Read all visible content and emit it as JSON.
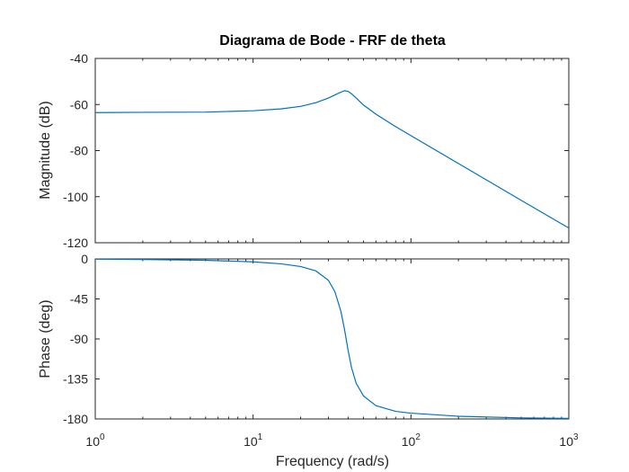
{
  "chart_data": {
    "type": "line",
    "title": "Diagrama de Bode - FRF de theta",
    "xlabel": "Frequency  (rad/s)",
    "xscale": "log",
    "xlim": [
      1,
      1000
    ],
    "xticks": [
      {
        "base": "10",
        "exp": "0"
      },
      {
        "base": "10",
        "exp": "1"
      },
      {
        "base": "10",
        "exp": "2"
      },
      {
        "base": "10",
        "exp": "3"
      }
    ],
    "grid": false,
    "color": "#0072BD",
    "plots": [
      {
        "name": "magnitude",
        "ylabel": "Magnitude (dB)",
        "ylim": [
          -120,
          -40
        ],
        "yticks": [
          "-40",
          "-60",
          "-80",
          "-100",
          "-120"
        ],
        "tick_values": [
          -40,
          -60,
          -80,
          -100,
          -120
        ],
        "x": [
          1,
          2,
          5,
          10,
          15,
          20,
          25,
          30,
          35,
          38,
          40,
          42,
          45,
          50,
          60,
          80,
          100,
          200,
          500,
          1000
        ],
        "y": [
          -63.5,
          -63.4,
          -63.3,
          -62.7,
          -61.9,
          -60.8,
          -59.2,
          -57.2,
          -55.0,
          -54.0,
          -54.3,
          -55.3,
          -57.2,
          -60.2,
          -64.2,
          -69.6,
          -73.5,
          -85.6,
          -101.6,
          -113.6
        ]
      },
      {
        "name": "phase",
        "ylabel": "Phase (deg)",
        "ylim": [
          -180,
          0
        ],
        "yticks": [
          "0",
          "-45",
          "-90",
          "-135",
          "-180"
        ],
        "tick_values": [
          0,
          -45,
          -90,
          -135,
          -180
        ],
        "x": [
          1,
          2,
          5,
          10,
          15,
          20,
          25,
          30,
          33,
          36,
          38,
          40,
          42,
          45,
          50,
          60,
          80,
          100,
          200,
          500,
          1000
        ],
        "y": [
          -0.3,
          -0.6,
          -1.5,
          -3.3,
          -5.5,
          -8.5,
          -13.5,
          -24,
          -37,
          -59,
          -80,
          -103,
          -122,
          -140,
          -154,
          -165,
          -171.5,
          -173.5,
          -177,
          -178.8,
          -179.4
        ]
      }
    ]
  }
}
